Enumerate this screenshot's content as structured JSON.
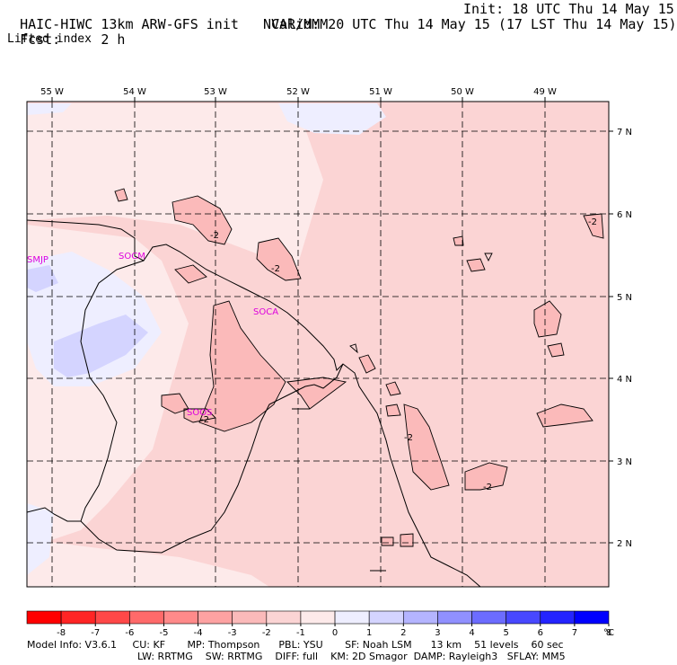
{
  "header": {
    "model_title": "HAIC-HIWC 13km ARW-GFS init",
    "org": "NCAR/MMM",
    "init": "Init: 18 UTC Thu 14 May 15",
    "fcst_label": "Fcst:",
    "fcst_value": "2 h",
    "valid": "Valid: 20 UTC Thu 14 May 15 (17 LST Thu 14 May 15)",
    "field": "Lifted index"
  },
  "map": {
    "lon_labels": [
      "55 W",
      "54 W",
      "53 W",
      "52 W",
      "51 W",
      "50 W",
      "49 W"
    ],
    "lat_labels": [
      "7 N",
      "6 N",
      "5 N",
      "4 N",
      "3 N",
      "2 N"
    ],
    "stations": [
      "SMJP",
      "SOCM",
      "SOCA",
      "SOOS"
    ],
    "contour_labels": [
      "-2",
      "-2",
      "-2",
      "-2",
      "-2",
      "-2"
    ]
  },
  "colorbar": {
    "ticks": [
      "-8",
      "-7",
      "-6",
      "-5",
      "-4",
      "-3",
      "-2",
      "-1",
      "0",
      "1",
      "2",
      "3",
      "4",
      "5",
      "6",
      "7",
      "8"
    ],
    "unit": "°C",
    "colors": [
      "#ff0000",
      "#ff2525",
      "#ff4848",
      "#ff6a6a",
      "#ff8a8a",
      "#fda2a2",
      "#fbbaba",
      "#fbd4d4",
      "#fdeaea",
      "#eeeeff",
      "#d4d4ff",
      "#b4b4ff",
      "#9090ff",
      "#6c6cff",
      "#4848ff",
      "#2424ff",
      "#0000ff"
    ]
  },
  "model_info": {
    "line1": [
      "Model Info: V3.6.1",
      "CU: KF",
      "MP: Thompson",
      "PBL: YSU",
      "SF: Noah LSM",
      "13 km",
      "51 levels",
      "60 sec"
    ],
    "line2": [
      "LW: RRTMG",
      "SW: RRTMG",
      "DIFF: full",
      "KM: 2D Smagor",
      "DAMP: Rayleigh3",
      "SFLAY: MM5"
    ]
  }
}
